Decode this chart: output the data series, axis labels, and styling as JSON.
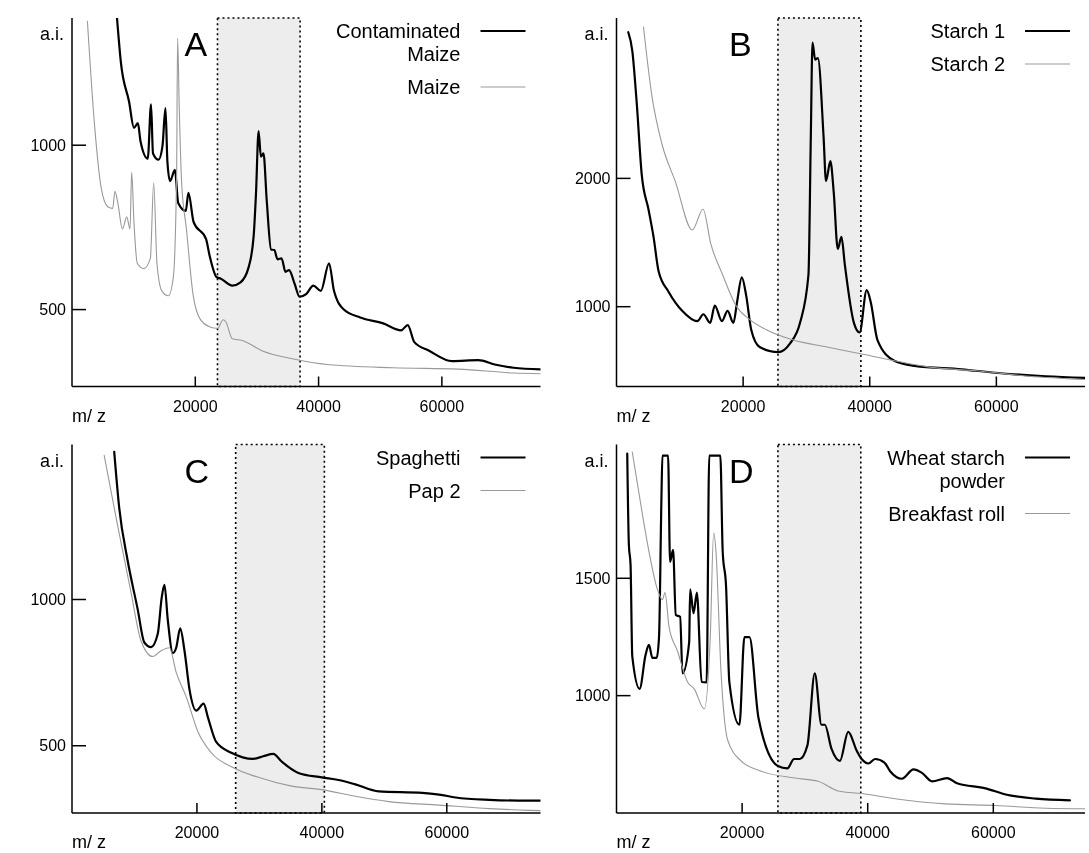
{
  "chart_data": [
    {
      "type": "line",
      "title": "A",
      "xlabel": "m/ z",
      "ylabel": "a.i.",
      "xlim": [
        0,
        76000
      ],
      "xticks": [
        20000,
        40000,
        60000
      ],
      "ylim": [
        266,
        1387
      ],
      "yticks": [
        500,
        1000
      ],
      "legend": "top right",
      "bands": [
        {
          "axis": "x",
          "from": 23600,
          "to": 37000,
          "color": "#000000"
        }
      ],
      "series": [
        {
          "name": "Contaminated Maize",
          "color": "#000000",
          "x": [
            7300,
            7930,
            9260,
            10050,
            10690,
            11120,
            12290,
            12820,
            13140,
            14040,
            14680,
            15160,
            15480,
            15900,
            16700,
            17230,
            18460,
            18880,
            19730,
            21750,
            22290,
            23460,
            24150,
            26010,
            27340,
            28670,
            29470,
            29840,
            30270,
            30640,
            31060,
            31600,
            32290,
            32820,
            33350,
            33990,
            34630,
            35210,
            36120,
            36910,
            37980,
            39150,
            40370,
            41700,
            42500,
            44100,
            46760,
            50480,
            53400,
            54470,
            55530,
            57930,
            61650,
            65900,
            68560,
            71640,
            76000
          ],
          "values": [
            1387,
            1252,
            1132,
            1053,
            1067,
            1011,
            959,
            1124,
            975,
            956,
            998,
            1113,
            949,
            891,
            925,
            824,
            800,
            855,
            766,
            714,
            667,
            599,
            594,
            573,
            583,
            630,
            724,
            850,
            1043,
            965,
            975,
            829,
            683,
            681,
            653,
            656,
            615,
            620,
            578,
            539,
            547,
            573,
            557,
            641,
            557,
            500,
            476,
            458,
            437,
            453,
            401,
            375,
            343,
            346,
            333,
            323,
            318
          ]
        },
        {
          "name": "Maize",
          "color": "#999999",
          "x": [
            2500,
            3670,
            4730,
            5800,
            6600,
            6970,
            7390,
            8190,
            8880,
            9410,
            9680,
            10050,
            10590,
            11650,
            12710,
            13250,
            13780,
            14570,
            15640,
            16440,
            16970,
            17130,
            17390,
            17770,
            18560,
            19630,
            20690,
            22290,
            23620,
            24520,
            24950,
            26010,
            27610,
            30800,
            36120,
            41440,
            52070,
            62710,
            71640,
            76000
          ],
          "values": [
            1377,
            1058,
            871,
            813,
            808,
            860,
            829,
            745,
            782,
            745,
            918,
            766,
            641,
            625,
            656,
            886,
            641,
            557,
            542,
            599,
            912,
            1325,
            1121,
            891,
            745,
            547,
            474,
            448,
            443,
            469,
            463,
            411,
            406,
            375,
            349,
            333,
            323,
            319,
            307,
            305
          ]
        }
      ]
    },
    {
      "type": "line",
      "title": "B",
      "xlabel": "m/ z",
      "ylabel": "a.i.",
      "xlim": [
        0,
        74000
      ],
      "xticks": [
        20000,
        40000,
        60000
      ],
      "ylim": [
        378,
        3250
      ],
      "yticks": [
        1000,
        2000
      ],
      "legend": "top right",
      "bands": [
        {
          "axis": "x",
          "from": 25500,
          "to": 38600,
          "color": "#000000"
        }
      ],
      "series": [
        {
          "name": "Starch 1",
          "color": "#000000",
          "x": [
            1860,
            2500,
            3190,
            3990,
            5050,
            5850,
            6650,
            8240,
            10370,
            12770,
            13720,
            14790,
            15530,
            16650,
            17550,
            18460,
            19040,
            19790,
            20480,
            21280,
            22610,
            25530,
            27390,
            28990,
            30320,
            30690,
            30960,
            31380,
            31810,
            32710,
            33090,
            33780,
            34310,
            34950,
            35530,
            36060,
            37500,
            38400,
            39520,
            40160,
            41220,
            43880,
            47070,
            54520,
            59840,
            67820,
            74000
          ],
          "values": [
            3139,
            2992,
            2590,
            2027,
            1759,
            1544,
            1276,
            1115,
            968,
            887,
            941,
            874,
            1008,
            887,
            968,
            874,
            1035,
            1228,
            1088,
            820,
            686,
            646,
            713,
            874,
            1249,
            2322,
            3059,
            2925,
            2938,
            2322,
            1979,
            2134,
            1893,
            1450,
            1544,
            1330,
            874,
            799,
            1129,
            1035,
            740,
            579,
            539,
            512,
            485,
            458,
            445
          ]
        },
        {
          "name": "Starch 2",
          "color": "#999999",
          "x": [
            4260,
            5590,
            7180,
            9310,
            11970,
            13670,
            14890,
            16760,
            18880,
            21010,
            23670,
            27930,
            33240,
            38560,
            43880,
            49200,
            57180,
            65160,
            74000
          ],
          "values": [
            3180,
            2643,
            2268,
            1973,
            1598,
            1759,
            1491,
            1249,
            1008,
            901,
            820,
            740,
            686,
            633,
            579,
            531,
            499,
            458,
            432
          ]
        }
      ]
    },
    {
      "type": "line",
      "title": "C",
      "xlabel": "m/ z",
      "ylabel": "a.i.",
      "xlim": [
        0,
        75000
      ],
      "xticks": [
        20000,
        40000,
        60000
      ],
      "ylim": [
        270,
        1530
      ],
      "yticks": [
        500,
        1000
      ],
      "legend": "top right",
      "bands": [
        {
          "axis": "x",
          "from": 26200,
          "to": 40400,
          "color": "#000000"
        }
      ],
      "series": [
        {
          "name": "Spaghetti",
          "color": "#000000",
          "x": [
            6760,
            7560,
            8900,
            10510,
            11580,
            12650,
            13730,
            14370,
            14800,
            15330,
            16140,
            16680,
            17320,
            18020,
            18820,
            19890,
            21070,
            21770,
            23110,
            25520,
            29000,
            30610,
            32220,
            33560,
            36240,
            39990,
            42680,
            45360,
            49110,
            56080,
            58760,
            61440,
            66810,
            73140,
            75000
          ],
          "values": [
            1505,
            1313,
            1134,
            967,
            853,
            837,
            883,
            1008,
            1050,
            931,
            817,
            835,
            901,
            823,
            691,
            620,
            644,
            596,
            512,
            476,
            455,
            464,
            472,
            446,
            407,
            392,
            383,
            368,
            344,
            339,
            333,
            323,
            315,
            312,
            312
          ]
        },
        {
          "name": "Pap 2",
          "color": "#999999",
          "x": [
            5150,
            7290,
            9430,
            11040,
            12920,
            14260,
            15600,
            16680,
            18290,
            20160,
            22300,
            25520,
            29810,
            35170,
            39990,
            45360,
            50720,
            58760,
            66810,
            73140,
            75000
          ],
          "values": [
            1493,
            1254,
            1026,
            859,
            805,
            825,
            835,
            751,
            667,
            548,
            476,
            428,
            392,
            362,
            350,
            327,
            309,
            297,
            285,
            279,
            278
          ]
        }
      ]
    },
    {
      "type": "line",
      "title": "D",
      "xlabel": "m/ z",
      "ylabel": "a.i.",
      "xlim": [
        0,
        74600
      ],
      "xticks": [
        20000,
        40000,
        60000
      ],
      "ylim": [
        500,
        2070
      ],
      "yticks": [
        1000,
        1500
      ],
      "legend": "top right",
      "bands": [
        {
          "axis": "x",
          "from": 25700,
          "to": 38900,
          "color": "#000000"
        }
      ],
      "series": [
        {
          "name": "Wheat starch powder",
          "color": "#000000",
          "x": [
            1710,
            1970,
            2240,
            2510,
            3680,
            4640,
            5170,
            5710,
            6400,
            6770,
            7150,
            7310,
            8210,
            8530,
            9010,
            9440,
            10130,
            10510,
            11570,
            11730,
            12270,
            12800,
            13550,
            14350,
            14770,
            16530,
            16910,
            17440,
            17970,
            19570,
            20370,
            21170,
            22610,
            25700,
            27200,
            28270,
            29170,
            30400,
            31570,
            32640,
            33170,
            34240,
            35570,
            36900,
            38240,
            39040,
            40100,
            41170,
            42660,
            43570,
            45440,
            47300,
            48640,
            50240,
            52640,
            54240,
            58770,
            61970,
            66770,
            72210
          ],
          "values": [
            2031,
            1643,
            1556,
            1168,
            1029,
            1175,
            1216,
            1161,
            1161,
            1249,
            1833,
            2023,
            2023,
            1570,
            1621,
            1344,
            1336,
            1095,
            1227,
            1453,
            1351,
            1439,
            1058,
            1056,
            2023,
            2023,
            1614,
            1468,
            1058,
            876,
            1249,
            1249,
            905,
            700,
            690,
            730,
            730,
            788,
            1095,
            876,
            876,
            773,
            722,
            846,
            766,
            730,
            711,
            730,
            715,
            678,
            646,
            686,
            671,
            635,
            649,
            627,
            605,
            579,
            561,
            554
          ]
        },
        {
          "name": "Breakfast roll",
          "color": "#999999",
          "x": [
            2510,
            3840,
            5170,
            6510,
            7310,
            7730,
            8370,
            9710,
            11310,
            12370,
            13970,
            14930,
            15470,
            15840,
            16640,
            17710,
            19840,
            23040,
            28370,
            32100,
            35300,
            39040,
            44370,
            52370,
            60370,
            68370,
            74600
          ],
          "values": [
            2038,
            1819,
            1614,
            1453,
            1409,
            1439,
            1292,
            1190,
            1058,
            1029,
            944,
            1249,
            1694,
            1614,
            1102,
            810,
            722,
            678,
            649,
            635,
            594,
            583,
            561,
            539,
            532,
            520,
            518
          ]
        }
      ]
    }
  ]
}
